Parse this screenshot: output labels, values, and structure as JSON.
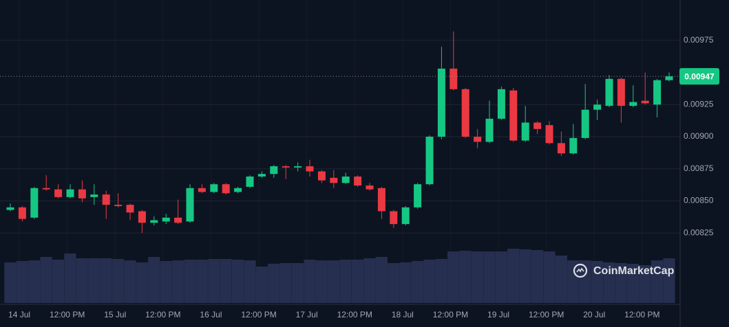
{
  "chart_data": {
    "type": "candlestick",
    "categories": [
      null,
      null,
      null,
      null,
      null,
      null,
      null,
      null,
      null,
      null,
      null,
      null,
      null,
      null,
      null,
      null,
      null,
      null,
      null,
      null,
      null,
      null,
      null,
      null,
      null,
      null,
      null,
      null,
      null,
      null,
      null,
      null,
      null,
      null,
      null,
      null,
      null,
      null,
      null,
      null,
      null,
      null,
      null,
      null,
      null,
      null,
      null,
      null,
      null,
      null,
      null,
      null,
      null,
      null,
      null,
      null
    ],
    "open": [
      0.00843,
      0.00845,
      0.00837,
      0.0086,
      0.00859,
      0.00853,
      0.00859,
      0.00853,
      0.00855,
      0.00847,
      0.00847,
      0.00842,
      0.00833,
      0.00834,
      0.00837,
      0.00834,
      0.0086,
      0.00857,
      0.00863,
      0.00857,
      0.00861,
      0.00869,
      0.00871,
      0.00877,
      0.00876,
      0.00877,
      0.00873,
      0.00868,
      0.00864,
      0.00869,
      0.00862,
      0.0086,
      0.00842,
      0.00832,
      0.00845,
      0.00863,
      0.009,
      0.00953,
      0.00937,
      0.009,
      0.00896,
      0.00914,
      0.00936,
      0.00897,
      0.00911,
      0.00909,
      0.00895,
      0.00887,
      0.00899,
      0.00921,
      0.00924,
      0.00945,
      0.00924,
      0.00928,
      0.00925,
      0.00944
    ],
    "high": [
      0.00848,
      0.00846,
      0.00861,
      0.0087,
      0.00863,
      0.00863,
      0.00866,
      0.00863,
      0.00858,
      0.00856,
      0.00848,
      0.00843,
      0.00838,
      0.0084,
      0.00851,
      0.00863,
      0.00863,
      0.00864,
      0.00864,
      0.00861,
      0.0087,
      0.00873,
      0.00878,
      0.00878,
      0.0088,
      0.00882,
      0.00874,
      0.00874,
      0.00872,
      0.0087,
      0.00864,
      0.00861,
      0.00843,
      0.00846,
      0.00864,
      0.00901,
      0.0097,
      0.00982,
      0.00938,
      0.00906,
      0.00928,
      0.00939,
      0.00938,
      0.00924,
      0.00912,
      0.00912,
      0.00904,
      0.0091,
      0.00941,
      0.00929,
      0.00948,
      0.00946,
      0.0094,
      0.0095,
      0.00945,
      0.0095
    ],
    "low": [
      0.00842,
      0.00834,
      0.00836,
      0.00858,
      0.00852,
      0.00852,
      0.00849,
      0.00847,
      0.00836,
      0.00845,
      0.00835,
      0.00825,
      0.00831,
      0.00832,
      0.00832,
      0.00833,
      0.00856,
      0.00856,
      0.00855,
      0.00856,
      0.0086,
      0.00868,
      0.00868,
      0.00867,
      0.00873,
      0.00869,
      0.00864,
      0.0086,
      0.00863,
      0.00861,
      0.00858,
      0.00836,
      0.00829,
      0.00831,
      0.00844,
      0.00862,
      0.00898,
      0.00936,
      0.00899,
      0.00891,
      0.00895,
      0.00913,
      0.00896,
      0.00896,
      0.00902,
      0.00894,
      0.00885,
      0.00886,
      0.00898,
      0.00913,
      0.00923,
      0.00911,
      0.00923,
      0.00925,
      0.00915,
      0.00943
    ],
    "close": [
      0.00845,
      0.00836,
      0.0086,
      0.00859,
      0.00853,
      0.00859,
      0.00852,
      0.00855,
      0.00847,
      0.00846,
      0.00841,
      0.00833,
      0.00835,
      0.00837,
      0.00833,
      0.0086,
      0.00857,
      0.00863,
      0.00856,
      0.0086,
      0.00869,
      0.00871,
      0.00877,
      0.00876,
      0.00877,
      0.00873,
      0.00866,
      0.00864,
      0.00869,
      0.00862,
      0.00859,
      0.00842,
      0.00832,
      0.00845,
      0.00863,
      0.009,
      0.00953,
      0.00937,
      0.009,
      0.00896,
      0.00914,
      0.00937,
      0.00897,
      0.00911,
      0.00906,
      0.00895,
      0.00887,
      0.00899,
      0.00921,
      0.00925,
      0.00945,
      0.00924,
      0.00927,
      0.00926,
      0.00944,
      0.00947
    ],
    "volume": [
      59,
      61,
      62,
      67,
      63,
      72,
      65,
      65,
      65,
      64,
      62,
      59,
      67,
      61,
      62,
      63,
      63,
      64,
      64,
      63,
      62,
      53,
      57,
      58,
      58,
      63,
      62,
      62,
      63,
      63,
      65,
      67,
      58,
      59,
      61,
      63,
      64,
      75,
      76,
      75,
      75,
      75,
      79,
      78,
      77,
      75,
      69,
      62,
      62,
      61,
      59,
      58,
      57,
      55,
      62,
      65
    ],
    "up_color": "#16c784",
    "down_color": "#ea3943",
    "volume_color": "#262f4f",
    "ylim": [
      0.0082,
      0.01
    ],
    "yticks": [
      0.00825,
      {
        "value": 0.0085,
        "label": "0.00850"
      },
      0.00875,
      {
        "value": 0.009,
        "label": "0.00900"
      },
      0.00925,
      0.00975
    ],
    "vlim": [
      0,
      100
    ],
    "xticks": [
      {
        "value": 0.75,
        "label": "14 Jul"
      },
      {
        "value": 4.75,
        "label": "12:00 PM"
      },
      {
        "value": 8.75,
        "label": "15 Jul"
      },
      {
        "value": 12.75,
        "label": "12:00 PM"
      },
      {
        "value": 16.75,
        "label": "16 Jul"
      },
      {
        "value": 20.75,
        "label": "12:00 PM"
      },
      {
        "value": 24.75,
        "label": "17 Jul"
      },
      {
        "value": 28.75,
        "label": "12:00 PM"
      },
      {
        "value": 32.75,
        "label": "18 Jul"
      },
      {
        "value": 36.75,
        "label": "12:00 PM"
      },
      {
        "value": 40.75,
        "label": "19 Jul"
      },
      {
        "value": 44.75,
        "label": "12:00 PM"
      },
      {
        "value": 48.75,
        "label": "20 Jul"
      },
      {
        "value": 52.75,
        "label": "12:00 PM"
      }
    ],
    "grid": true,
    "current_price": 0.00947,
    "watermark": "CoinMarketCap"
  }
}
